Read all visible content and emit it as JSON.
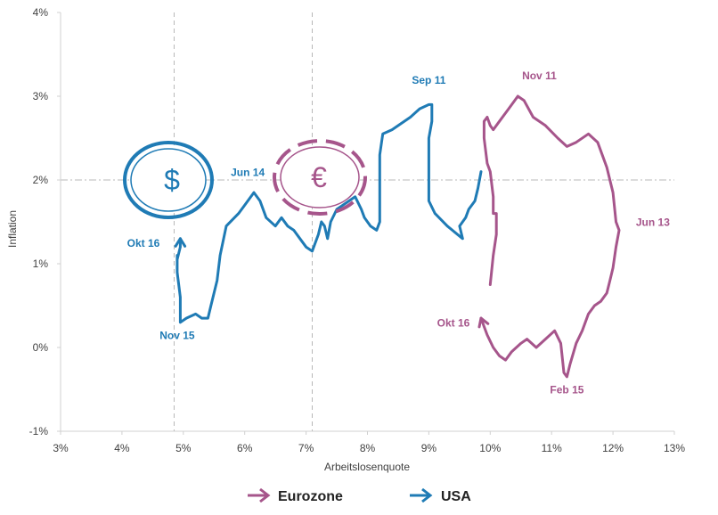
{
  "chart_data": {
    "type": "line",
    "xlabel": "Arbeitslosenquote",
    "ylabel": "Inflation",
    "xlim": [
      3,
      13
    ],
    "ylim": [
      -1,
      4
    ],
    "x_ticks": [
      "3%",
      "4%",
      "5%",
      "6%",
      "7%",
      "8%",
      "9%",
      "10%",
      "11%",
      "12%",
      "13%"
    ],
    "y_ticks": [
      "-1%",
      "0%",
      "1%",
      "2%",
      "3%",
      "4%"
    ],
    "reference_lines": {
      "x": [
        4.85,
        7.1
      ],
      "y": [
        2.0
      ]
    },
    "series": [
      {
        "name": "USA",
        "color": "#1f7bb5",
        "points": [
          [
            9.85,
            2.1
          ],
          [
            9.8,
            1.9
          ],
          [
            9.75,
            1.75
          ],
          [
            9.65,
            1.65
          ],
          [
            9.6,
            1.55
          ],
          [
            9.5,
            1.45
          ],
          [
            9.55,
            1.3
          ],
          [
            9.3,
            1.45
          ],
          [
            9.1,
            1.6
          ],
          [
            9.0,
            1.75
          ],
          [
            9.0,
            2.5
          ],
          [
            9.05,
            2.7
          ],
          [
            9.05,
            2.9
          ],
          [
            9.0,
            2.9
          ],
          [
            8.85,
            2.85
          ],
          [
            8.7,
            2.75
          ],
          [
            8.5,
            2.65
          ],
          [
            8.4,
            2.6
          ],
          [
            8.25,
            2.55
          ],
          [
            8.2,
            2.3
          ],
          [
            8.2,
            1.6
          ],
          [
            8.2,
            1.5
          ],
          [
            8.15,
            1.4
          ],
          [
            8.05,
            1.45
          ],
          [
            7.95,
            1.55
          ],
          [
            7.9,
            1.65
          ],
          [
            7.8,
            1.8
          ],
          [
            7.7,
            1.75
          ],
          [
            7.6,
            1.7
          ],
          [
            7.5,
            1.65
          ],
          [
            7.4,
            1.5
          ],
          [
            7.35,
            1.3
          ],
          [
            7.3,
            1.45
          ],
          [
            7.25,
            1.5
          ],
          [
            7.2,
            1.35
          ],
          [
            7.1,
            1.15
          ],
          [
            7.0,
            1.2
          ],
          [
            6.9,
            1.3
          ],
          [
            6.8,
            1.4
          ],
          [
            6.7,
            1.45
          ],
          [
            6.6,
            1.55
          ],
          [
            6.5,
            1.45
          ],
          [
            6.35,
            1.55
          ],
          [
            6.25,
            1.75
          ],
          [
            6.15,
            1.85
          ],
          [
            6.0,
            1.7
          ],
          [
            5.9,
            1.6
          ],
          [
            5.7,
            1.45
          ],
          [
            5.6,
            1.1
          ],
          [
            5.55,
            0.8
          ],
          [
            5.45,
            0.5
          ],
          [
            5.4,
            0.35
          ],
          [
            5.3,
            0.35
          ],
          [
            5.2,
            0.4
          ],
          [
            5.05,
            0.35
          ],
          [
            4.95,
            0.3
          ],
          [
            4.95,
            0.6
          ],
          [
            4.9,
            0.9
          ],
          [
            4.9,
            1.1
          ],
          [
            4.9,
            1.05
          ],
          [
            4.95,
            1.2
          ],
          [
            4.95,
            1.3
          ]
        ]
      },
      {
        "name": "Eurozone",
        "color": "#a6558b",
        "points": [
          [
            10.0,
            0.75
          ],
          [
            10.05,
            1.1
          ],
          [
            10.1,
            1.35
          ],
          [
            10.1,
            1.6
          ],
          [
            10.05,
            1.6
          ],
          [
            10.05,
            1.8
          ],
          [
            10.0,
            2.1
          ],
          [
            9.95,
            2.2
          ],
          [
            9.9,
            2.5
          ],
          [
            9.9,
            2.7
          ],
          [
            9.95,
            2.75
          ],
          [
            10.0,
            2.65
          ],
          [
            10.05,
            2.6
          ],
          [
            10.15,
            2.7
          ],
          [
            10.3,
            2.85
          ],
          [
            10.45,
            3.0
          ],
          [
            10.55,
            2.95
          ],
          [
            10.7,
            2.75
          ],
          [
            10.9,
            2.65
          ],
          [
            11.1,
            2.5
          ],
          [
            11.25,
            2.4
          ],
          [
            11.4,
            2.45
          ],
          [
            11.6,
            2.55
          ],
          [
            11.75,
            2.45
          ],
          [
            11.9,
            2.15
          ],
          [
            12.0,
            1.85
          ],
          [
            12.05,
            1.5
          ],
          [
            12.1,
            1.4
          ],
          [
            12.05,
            1.2
          ],
          [
            12.0,
            0.95
          ],
          [
            11.95,
            0.8
          ],
          [
            11.9,
            0.65
          ],
          [
            11.8,
            0.55
          ],
          [
            11.7,
            0.5
          ],
          [
            11.6,
            0.4
          ],
          [
            11.5,
            0.2
          ],
          [
            11.4,
            0.05
          ],
          [
            11.3,
            -0.2
          ],
          [
            11.25,
            -0.35
          ],
          [
            11.2,
            -0.3
          ],
          [
            11.15,
            0.05
          ],
          [
            11.05,
            0.2
          ],
          [
            10.9,
            0.1
          ],
          [
            10.75,
            0.0
          ],
          [
            10.6,
            0.1
          ],
          [
            10.5,
            0.05
          ],
          [
            10.35,
            -0.05
          ],
          [
            10.25,
            -0.15
          ],
          [
            10.15,
            -0.1
          ],
          [
            10.05,
            0.0
          ],
          [
            9.95,
            0.15
          ],
          [
            9.9,
            0.25
          ],
          [
            9.85,
            0.35
          ]
        ]
      }
    ],
    "annotations": [
      {
        "text": "Sep 11",
        "series": "USA",
        "x": 9.0,
        "y": 3.15
      },
      {
        "text": "Jun 14",
        "series": "USA",
        "x": 6.05,
        "y": 2.05
      },
      {
        "text": "Okt 16",
        "series": "USA",
        "x": 4.35,
        "y": 1.2
      },
      {
        "text": "Nov 15",
        "series": "USA",
        "x": 4.9,
        "y": 0.1
      },
      {
        "text": "Nov 11",
        "series": "Eurozone",
        "x": 10.8,
        "y": 3.2
      },
      {
        "text": "Jun 13",
        "series": "Eurozone",
        "x": 12.65,
        "y": 1.45
      },
      {
        "text": "Okt 16",
        "series": "Eurozone",
        "x": 9.4,
        "y": 0.25
      },
      {
        "text": "Feb 15",
        "series": "Eurozone",
        "x": 11.25,
        "y": -0.55
      }
    ],
    "grid": false,
    "legend": "bottom-center"
  },
  "badges": {
    "dollar": {
      "symbol": "$",
      "color": "#1f7bb5"
    },
    "euro": {
      "symbol": "€",
      "color": "#a6558b"
    }
  },
  "legend": {
    "items": [
      {
        "label": "Eurozone",
        "color": "#a6558b"
      },
      {
        "label": "USA",
        "color": "#1f7bb5"
      }
    ]
  }
}
